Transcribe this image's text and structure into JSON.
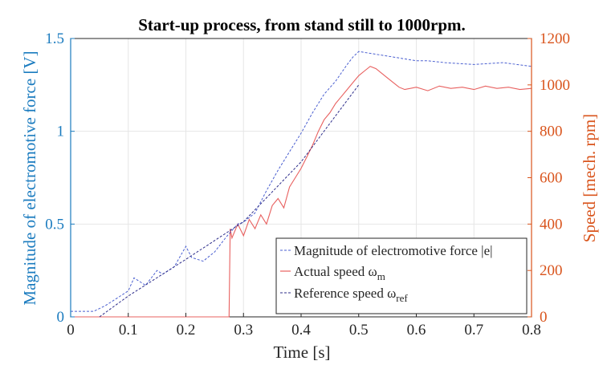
{
  "chart_data": {
    "type": "line",
    "title": "Start-up process, from stand still to 1000rpm.",
    "xlabel": "Time [s]",
    "ylabel_left": "Magnitude of electromotive force [V]",
    "ylabel_right": "Speed [mech. rpm]",
    "xlim": [
      0,
      0.8
    ],
    "ylim_left": [
      0,
      1.5
    ],
    "ylim_right": [
      0,
      1200
    ],
    "x_ticks": [
      "0",
      "0.1",
      "0.2",
      "0.3",
      "0.4",
      "0.5",
      "0.6",
      "0.7",
      "0.8"
    ],
    "y_left_ticks": [
      "0",
      "0.5",
      "1",
      "1.5"
    ],
    "y_right_ticks": [
      "0",
      "200",
      "400",
      "600",
      "800",
      "1000",
      "1200"
    ],
    "grid": true,
    "legend_position": "bottom-right",
    "colors": {
      "left_axis": "#1a7bbf",
      "right_axis": "#d9541c",
      "emf": "#4a5fd0",
      "actual": "#e8605f",
      "reference": "#2c2c8a"
    },
    "series": [
      {
        "name": "Magnitude of electromotive force |e|",
        "axis": "left",
        "style": "dashed",
        "x": [
          0,
          0.04,
          0.06,
          0.08,
          0.1,
          0.11,
          0.13,
          0.15,
          0.16,
          0.18,
          0.2,
          0.21,
          0.23,
          0.25,
          0.27,
          0.29,
          0.3,
          0.32,
          0.34,
          0.36,
          0.38,
          0.4,
          0.42,
          0.44,
          0.46,
          0.48,
          0.49,
          0.5,
          0.52,
          0.54,
          0.56,
          0.58,
          0.6,
          0.62,
          0.65,
          0.7,
          0.75,
          0.8
        ],
        "y": [
          0.03,
          0.03,
          0.06,
          0.1,
          0.14,
          0.21,
          0.17,
          0.25,
          0.23,
          0.27,
          0.38,
          0.32,
          0.3,
          0.35,
          0.43,
          0.5,
          0.51,
          0.56,
          0.68,
          0.79,
          0.89,
          0.99,
          1.1,
          1.2,
          1.27,
          1.36,
          1.4,
          1.43,
          1.42,
          1.41,
          1.4,
          1.39,
          1.38,
          1.38,
          1.37,
          1.36,
          1.37,
          1.35
        ]
      },
      {
        "name": "Actual speed ω_m",
        "axis": "right",
        "style": "solid",
        "x": [
          0,
          0.2,
          0.275,
          0.277,
          0.28,
          0.29,
          0.3,
          0.31,
          0.32,
          0.33,
          0.34,
          0.35,
          0.36,
          0.37,
          0.38,
          0.39,
          0.4,
          0.41,
          0.42,
          0.43,
          0.44,
          0.45,
          0.46,
          0.47,
          0.48,
          0.49,
          0.5,
          0.51,
          0.52,
          0.53,
          0.54,
          0.55,
          0.56,
          0.57,
          0.58,
          0.6,
          0.62,
          0.64,
          0.66,
          0.68,
          0.7,
          0.72,
          0.74,
          0.76,
          0.78,
          0.8
        ],
        "y": [
          0,
          0,
          0,
          380,
          340,
          400,
          350,
          420,
          380,
          440,
          400,
          480,
          510,
          470,
          560,
          600,
          640,
          690,
          740,
          800,
          850,
          880,
          920,
          950,
          980,
          1010,
          1040,
          1060,
          1080,
          1070,
          1050,
          1030,
          1010,
          990,
          980,
          990,
          975,
          995,
          985,
          990,
          980,
          995,
          985,
          990,
          980,
          985
        ]
      },
      {
        "name": "Reference speed ω_ref",
        "axis": "right",
        "style": "dashed",
        "x": [
          0.05,
          0.1,
          0.2,
          0.3,
          0.4,
          0.5
        ],
        "y": [
          0,
          90,
          248,
          410,
          668,
          1000
        ]
      }
    ]
  },
  "legend": {
    "emf": "Magnitude of electromotive force |e|",
    "actual_main": "Actual speed ω",
    "actual_sub": "m",
    "ref_main": "Reference speed ω",
    "ref_sub": "ref"
  }
}
